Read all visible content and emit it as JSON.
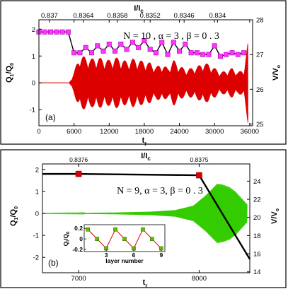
{
  "chart_data": [
    {
      "type": "line",
      "panel_label": "(a)",
      "annotation": "N = 10 ,  α = 3 ,  β = 0 . 3",
      "xlabel": "t",
      "xlabel_sub": "r",
      "ylabel_left": "Q",
      "ylabel_left_sub1": "1",
      "ylabel_left_mid": "/Q",
      "ylabel_left_sub2": "0",
      "ylabel_right": "V/V",
      "ylabel_right_sub": "o",
      "top_label": "I/I",
      "top_label_sub": "c",
      "xlim": [
        0,
        36500
      ],
      "ylim_left": [
        -1.6,
        2.35
      ],
      "ylim_right": [
        24.95,
        28.0
      ],
      "xticks": [
        0,
        6000,
        12000,
        18000,
        24000,
        30000,
        36000
      ],
      "xtick_labels": [
        "0",
        "6000",
        "12000",
        "18000",
        "24000",
        "30000",
        "36000"
      ],
      "yticks_left": [
        -1,
        0,
        1,
        2
      ],
      "yticks_left_labels": [
        "-1",
        "0",
        "1",
        "2"
      ],
      "yticks_right": [
        25,
        26,
        27,
        28
      ],
      "yticks_right_labels": [
        "25",
        "26",
        "27",
        "28"
      ],
      "top_ticks": [
        1800,
        7600,
        13400,
        19000,
        24800,
        30500
      ],
      "top_tick_labels": [
        "0.837",
        "0.8364",
        "0.8358",
        "0.8352",
        "0.8346",
        "0.834"
      ],
      "series": [
        {
          "role": "V/V0 (right axis)",
          "color": "#000000",
          "marker_color": "#ff33ff",
          "x": [
            0,
            1000,
            2000,
            3000,
            4000,
            5000,
            6000,
            7000,
            8000,
            9000,
            10000,
            11000,
            12000,
            13000,
            14000,
            15000,
            16000,
            17000,
            18000,
            19000,
            20000,
            21000,
            22000,
            23000,
            24000,
            25000,
            26000,
            27000,
            28000,
            29000,
            30000,
            31000,
            32000,
            33000,
            34000,
            35000
          ],
          "y": [
            27.65,
            27.65,
            27.65,
            27.65,
            27.65,
            27.65,
            27.05,
            27.05,
            27.2,
            27.05,
            27.25,
            27.1,
            27.3,
            27.1,
            27.3,
            27.15,
            27.35,
            27.2,
            27.4,
            27.15,
            27.05,
            27.35,
            27.0,
            27.35,
            27.1,
            27.3,
            27.05,
            27.05,
            27.0,
            27.0,
            27.25,
            26.95,
            27.0,
            27.05,
            27.0,
            27.05
          ]
        },
        {
          "role": "Q1/Q0 (left axis)",
          "color": "#dd0000",
          "envelope_x": [
            0,
            5200,
            6000,
            7000,
            8000,
            9000,
            10000,
            11000,
            12000,
            13000,
            14000,
            15000,
            16000,
            17000,
            18000,
            19000,
            20000,
            21000,
            22000,
            23000,
            24000,
            25000,
            26000,
            27000,
            28000,
            29000,
            30000,
            31000,
            32000,
            33000,
            34000,
            35000,
            35700
          ],
          "envelope_amp": [
            0,
            0,
            0.4,
            1.05,
            0.95,
            0.9,
            0.95,
            0.9,
            0.85,
            0.95,
            0.9,
            0.8,
            0.9,
            0.85,
            0.8,
            0.75,
            0.6,
            0.7,
            0.55,
            0.85,
            0.65,
            0.5,
            0.55,
            0.6,
            0.75,
            0.7,
            0.55,
            0.4,
            0.45,
            0.55,
            0.4,
            0.5,
            1.5
          ]
        }
      ]
    },
    {
      "type": "line",
      "panel_label": "(b)",
      "annotation": "N = 9,  α = 3,  β = 0 . 3",
      "xlabel": "t",
      "xlabel_sub": "r",
      "ylabel_left": "Q",
      "ylabel_left_sub1": "1",
      "ylabel_left_mid": "/Q",
      "ylabel_left_sub2": "0",
      "ylabel_right": "V/V",
      "ylabel_right_sub": "o",
      "top_label": "I/I",
      "top_label_sub": "c",
      "xlim": [
        6700,
        8420
      ],
      "ylim_left": [
        -2.7,
        2.25
      ],
      "ylim_right": [
        13.9,
        25.9
      ],
      "xticks": [
        7000,
        8000
      ],
      "xtick_labels": [
        "7000",
        "8000"
      ],
      "yticks_left": [
        -2,
        -1,
        0,
        1,
        2
      ],
      "yticks_left_labels": [
        "-2",
        "-1",
        "0",
        "1",
        "2"
      ],
      "yticks_right": [
        14,
        16,
        18,
        20,
        22,
        24
      ],
      "yticks_right_labels": [
        "14",
        "16",
        "18",
        "20",
        "22",
        "24"
      ],
      "top_ticks": [
        7000,
        8000
      ],
      "top_tick_labels": [
        "0.8376",
        "0.8375"
      ],
      "series": [
        {
          "role": "V/V0 (right axis)",
          "color": "#000000",
          "marker_color": "#dd0000",
          "x": [
            6700,
            7000,
            8000,
            8420
          ],
          "y": [
            24.8,
            24.8,
            24.65,
            15.4
          ],
          "marked_points": [
            1,
            2
          ]
        },
        {
          "role": "Q1/Q0 (left axis)",
          "color": "#33cc00",
          "envelope_x": [
            6700,
            7000,
            7300,
            7600,
            7800,
            7950,
            8050,
            8150,
            8200,
            8250,
            8300,
            8350,
            8400
          ],
          "envelope_amp": [
            0.01,
            0.02,
            0.04,
            0.08,
            0.15,
            0.35,
            0.8,
            1.35,
            1.3,
            1.2,
            1.0,
            0.7,
            0.4
          ]
        }
      ],
      "inset": {
        "xlabel": "layer number",
        "ylabel": "Q",
        "ylabel_sub1": "l",
        "ylabel_mid": "/Q",
        "ylabel_sub2": "0",
        "xlim": [
          0.6,
          9.4
        ],
        "ylim": [
          -0.24,
          0.27
        ],
        "xticks": [
          3,
          6,
          9
        ],
        "xtick_labels": [
          "3",
          "6",
          "9"
        ],
        "yticks": [
          -0.2,
          0,
          0.2
        ],
        "ytick_labels": [
          "-0.2",
          "0",
          "0.2"
        ],
        "x": [
          1,
          2,
          3,
          4,
          5,
          6,
          7,
          8,
          9
        ],
        "y": [
          0.18,
          0.0,
          -0.18,
          0.18,
          0.0,
          -0.18,
          0.18,
          0.0,
          -0.18
        ],
        "line_color": "#dd0000",
        "marker_color": "#66bb00"
      }
    }
  ]
}
